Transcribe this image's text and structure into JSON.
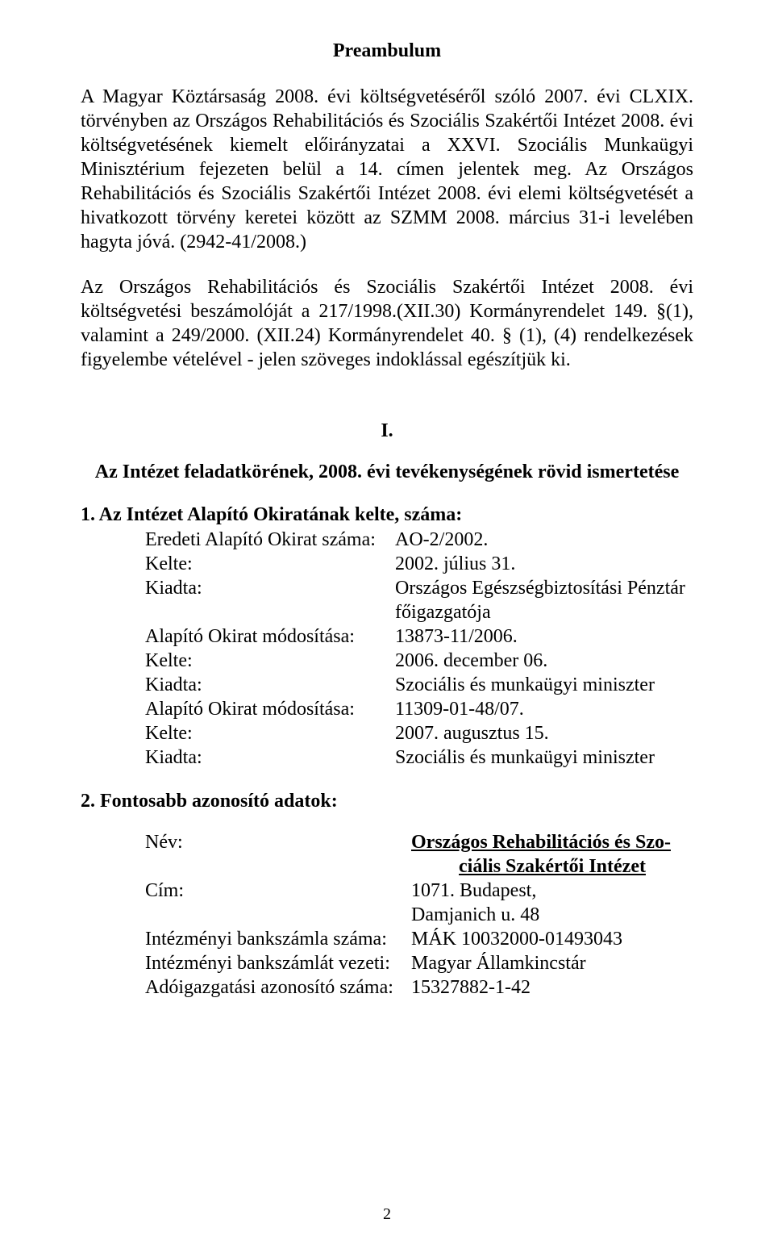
{
  "title": "Preambulum",
  "para1": "A Magyar Köztársaság 2008. évi költségvetéséről szóló 2007. évi CLXIX. törvényben az Országos Rehabilitációs és Szociális Szakértői Intézet 2008. évi költségvetésének kiemelt előirányzatai a XXVI. Szociális Munkaügyi Minisztérium fejezeten belül a 14. címen jelentek meg. Az Országos Rehabilitációs és Szociális Szakértői Intézet 2008. évi elemi költségvetését a hivatkozott törvény keretei között az SZMM 2008. március 31-i levelében hagyta jóvá. (2942-41/2008.)",
  "para2": "Az Országos Rehabilitációs és Szociális Szakértői Intézet 2008. évi költségvetési beszámolóját a 217/1998.(XII.30) Kormányrendelet 149. §(1), valamint a 249/2000. (XII.24) Kormányrendelet 40. § (1), (4) rendelkezések figyelembe vételével - jelen szöveges indoklással egészítjük ki.",
  "section_num": "I.",
  "section_heading": "Az Intézet feladatkörének, 2008. évi tevékenységének rövid ismertetése",
  "list1_heading": "1.  Az Intézet Alapító Okiratának kelte, száma:",
  "list1": {
    "rows": [
      {
        "label": "Eredeti Alapító Okirat száma:",
        "value": "AO-2/2002."
      },
      {
        "label": "Kelte:",
        "value": "2002. július 31."
      },
      {
        "label": "Kiadta:",
        "value": "Országos Egészségbiztosítási Pénztár főigazgatója"
      },
      {
        "label": "Alapító Okirat módosítása:",
        "value": "13873-11/2006."
      },
      {
        "label": "Kelte:",
        "value": "2006. december 06."
      },
      {
        "label": "Kiadta:",
        "value": "Szociális és munkaügyi miniszter"
      },
      {
        "label": "Alapító Okirat módosítása:",
        "value": "11309-01-48/07."
      },
      {
        "label": "Kelte:",
        "value": "2007. augusztus 15."
      },
      {
        "label": "Kiadta:",
        "value": "Szociális és munkaügyi miniszter"
      }
    ]
  },
  "list2_heading": "2.  Fontosabb azonosító adatok:",
  "list2": {
    "name_label": "Név:",
    "name_value_l1": "Országos Rehabilitációs és Szo-",
    "name_value_l2": "ciális Szakértői Intézet",
    "cim_label": "Cím:",
    "cim_value_l1": "1071. Budapest,",
    "cim_value_l2": "Damjanich u. 48",
    "bank_label": "Intézményi bankszámla száma:",
    "bank_value": "MÁK 10032000-01493043",
    "bankvez_label": "Intézményi bankszámlát vezeti:",
    "bankvez_value": "Magyar Államkincstár",
    "ado_label": "Adóigazgatási azonosító száma:",
    "ado_value": "15327882-1-42"
  },
  "page_number": "2"
}
